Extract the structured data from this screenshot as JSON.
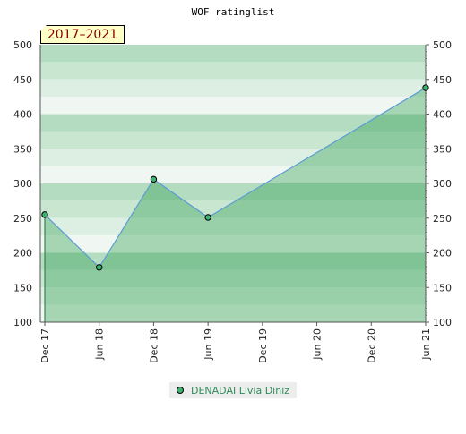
{
  "chart_data": {
    "type": "area",
    "title": "WOF ratinglist",
    "period_label": "2017–2021",
    "x_tick_labels": [
      "Dec 17",
      "Jun 18",
      "Dec 18",
      "Jun 19",
      "Dec 19",
      "Jun 20",
      "Dec 20",
      "Jun 21"
    ],
    "y_ticks": [
      100,
      150,
      200,
      250,
      300,
      350,
      400,
      450,
      500
    ],
    "ylim": [
      100,
      500
    ],
    "series": [
      {
        "name": "DENADAI Livia Diniz",
        "points": [
          {
            "x": "Dec 17",
            "y": 255
          },
          {
            "x": "Jun 18",
            "y": 179
          },
          {
            "x": "Dec 18",
            "y": 306
          },
          {
            "x": "Jun 19",
            "y": 251
          },
          {
            "x": "Jun 21",
            "y": 438
          }
        ]
      }
    ],
    "colors": {
      "line": "#5b9bd5",
      "fill": "#2e9e4e",
      "marker": "#3cb371",
      "band_dark": "#b4dcc0",
      "band_light": "#f0f7f2"
    },
    "grid": true,
    "legend_position": "bottom-center"
  }
}
